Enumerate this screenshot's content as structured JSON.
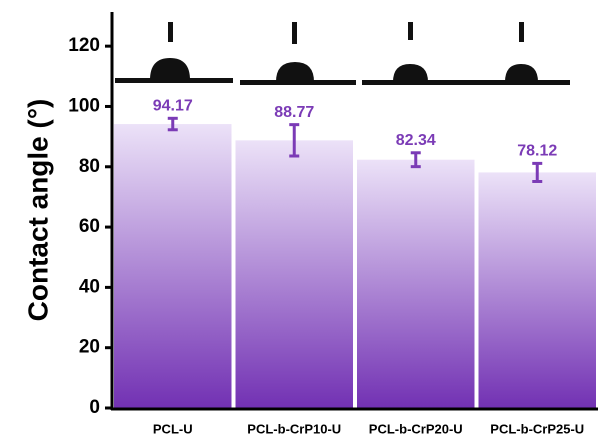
{
  "chart_data": {
    "type": "bar",
    "y_label": "Contact angle (°)",
    "categories": [
      "PCL-U",
      "PCL-b-CrP10-U",
      "PCL-b-CrP20-U",
      "PCL-b-CrP25-U"
    ],
    "values": [
      94.17,
      88.77,
      82.34,
      78.12
    ],
    "errors": [
      1.9,
      5.2,
      2.3,
      3.0
    ],
    "gradient": [
      "#ece2f8",
      "#7231b3"
    ],
    "color": "#7b3bb6",
    "ylim": [
      0,
      130
    ],
    "yticks": [
      0,
      20,
      40,
      60,
      80,
      100,
      120
    ]
  }
}
